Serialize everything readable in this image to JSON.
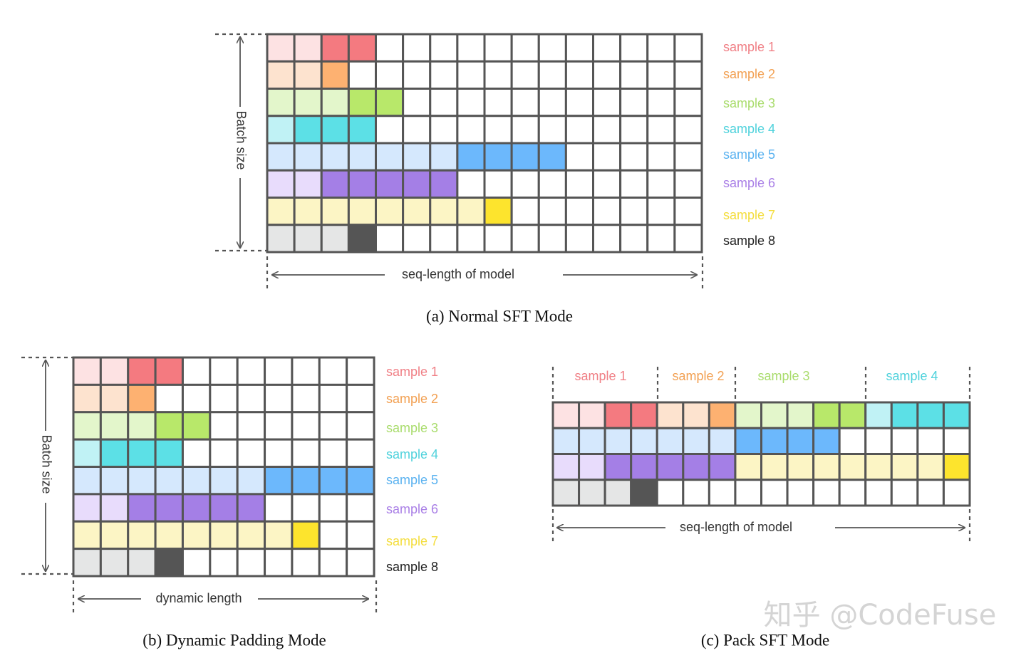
{
  "samples": [
    {
      "label": "sample 1",
      "light": "#fde2e3",
      "dark": "#f47a80",
      "text_color": "#f07f85",
      "tokens": 4,
      "padded_light": 2
    },
    {
      "label": "sample 2",
      "light": "#fde3cf",
      "dark": "#fdb171",
      "text_color": "#f2a052",
      "tokens": 3,
      "padded_light": 2
    },
    {
      "label": "sample 3",
      "light": "#e3f6cb",
      "dark": "#b8e86a",
      "text_color": "#a9dc6c",
      "tokens": 5,
      "padded_light": 3
    },
    {
      "label": "sample 4",
      "light": "#c0f2f5",
      "dark": "#5ce0e6",
      "text_color": "#4fd2dc",
      "tokens": 4,
      "padded_light": 1
    },
    {
      "label": "sample 5",
      "light": "#d5e8fd",
      "dark": "#6cb8fc",
      "text_color": "#5ab2f0",
      "tokens": 11,
      "padded_light": 7
    },
    {
      "label": "sample 6",
      "light": "#e8dcfc",
      "dark": "#a47fe6",
      "text_color": "#a97fe6",
      "tokens": 7,
      "padded_light": 2
    },
    {
      "label": "sample 7",
      "light": "#fcf5c5",
      "dark": "#fde42d",
      "text_color": "#f4dd3c",
      "tokens": 9,
      "padded_light": 8
    },
    {
      "label": "sample 8",
      "light": "#e5e6e6",
      "dark": "#555555",
      "text_color": "#222222",
      "tokens": 4,
      "padded_light": 3
    }
  ],
  "grid_color": "#555555",
  "panel_a": {
    "caption": "(a) Normal SFT Mode",
    "seq_columns": 16,
    "batch_label": "Batch size",
    "length_label": "seq-length of model"
  },
  "panel_b": {
    "caption": "(b) Dynamic Padding Mode",
    "seq_columns": 11,
    "batch_label": "Batch size",
    "length_label": "dynamic length"
  },
  "panel_c": {
    "caption": "(c) Pack SFT Mode",
    "seq_columns": 16,
    "length_label": "seq-length of model",
    "top_labels": [
      "sample 1",
      "sample 2",
      "sample 3",
      "sample 4"
    ],
    "rows": [
      [
        0,
        1,
        2,
        3
      ],
      [
        4
      ],
      [
        5,
        6
      ],
      [
        7
      ]
    ]
  },
  "watermark": "知乎 @CodeFuse"
}
